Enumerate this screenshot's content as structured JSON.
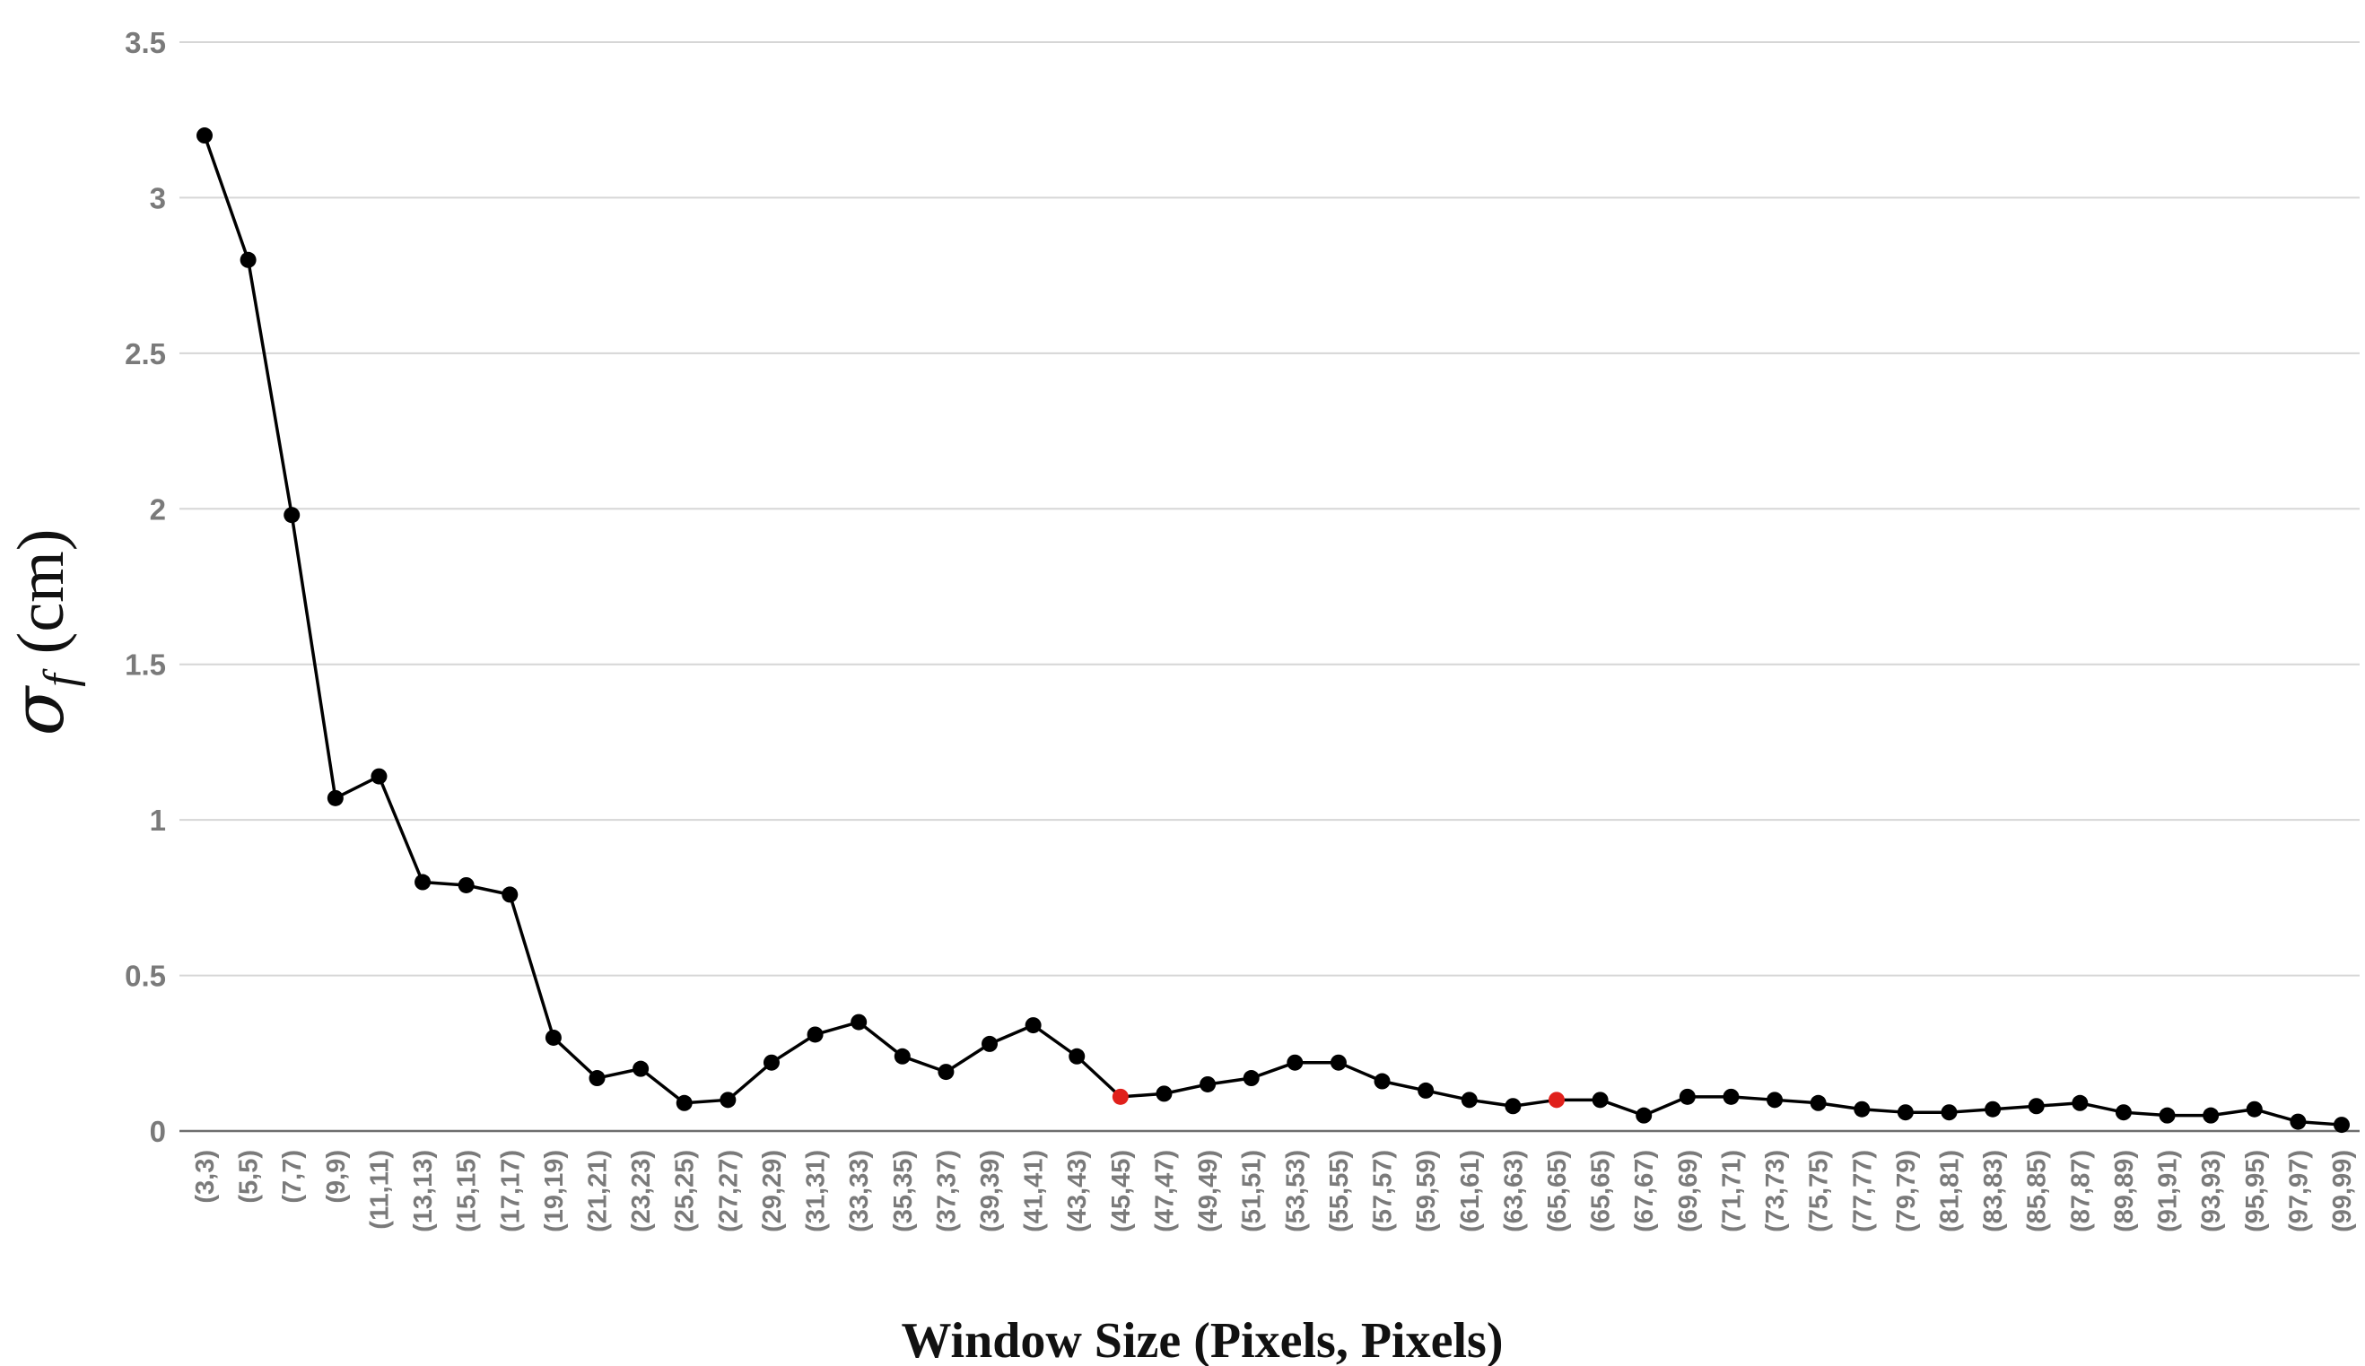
{
  "chart_data": {
    "type": "line",
    "xlabel": "Window Size (Pixels, Pixels)",
    "ylabel": {
      "symbol": "σ",
      "subscript": "f",
      "unit": "(cm)"
    },
    "ylim": [
      0,
      3.5
    ],
    "yticks": [
      "0",
      "0.5",
      "1",
      "1.5",
      "2",
      "2.5",
      "3",
      "3.5"
    ],
    "grid": true,
    "colors": {
      "line": "#000000",
      "point": "#000000",
      "highlight": "#e0201b"
    },
    "categories": [
      "(3,3)",
      "(5,5)",
      "(7,7)",
      "(9,9)",
      "(11,11)",
      "(13,13)",
      "(15,15)",
      "(17,17)",
      "(19,19)",
      "(21,21)",
      "(23,23)",
      "(25,25)",
      "(27,27)",
      "(29,29)",
      "(31,31)",
      "(33,33)",
      "(35,35)",
      "(37,37)",
      "(39,39)",
      "(41,41)",
      "(43,43)",
      "(45,45)",
      "(47,47)",
      "(49,49)",
      "(51,51)",
      "(53,53)",
      "(55,55)",
      "(57,57)",
      "(59,59)",
      "(61,61)",
      "(63,63)",
      "(65,65)",
      "(65,65)",
      "(67,67)",
      "(69,69)",
      "(71,71)",
      "(73,73)",
      "(75,75)",
      "(77,77)",
      "(79,79)",
      "(81,81)",
      "(83,83)",
      "(85,85)",
      "(87,87)",
      "(89,89)",
      "(91,91)",
      "(93,93)",
      "(95,95)",
      "(97,97)",
      "(99,99)"
    ],
    "series": [
      {
        "values": [
          3.2,
          2.8,
          1.98,
          1.07,
          1.14,
          0.8,
          0.79,
          0.76,
          0.3,
          0.17,
          0.2,
          0.09,
          0.1,
          0.22,
          0.31,
          0.35,
          0.24,
          0.19,
          0.28,
          0.34,
          0.24,
          0.11,
          0.12,
          0.15,
          0.17,
          0.22,
          0.22,
          0.16,
          0.13,
          0.1,
          0.08,
          0.1,
          0.1,
          0.05,
          0.11,
          0.11,
          0.1,
          0.09,
          0.07,
          0.06,
          0.06,
          0.07,
          0.08,
          0.09,
          0.06,
          0.05,
          0.05,
          0.07,
          0.03,
          0.02
        ]
      }
    ],
    "highlighted_indices": [
      21,
      31
    ]
  }
}
